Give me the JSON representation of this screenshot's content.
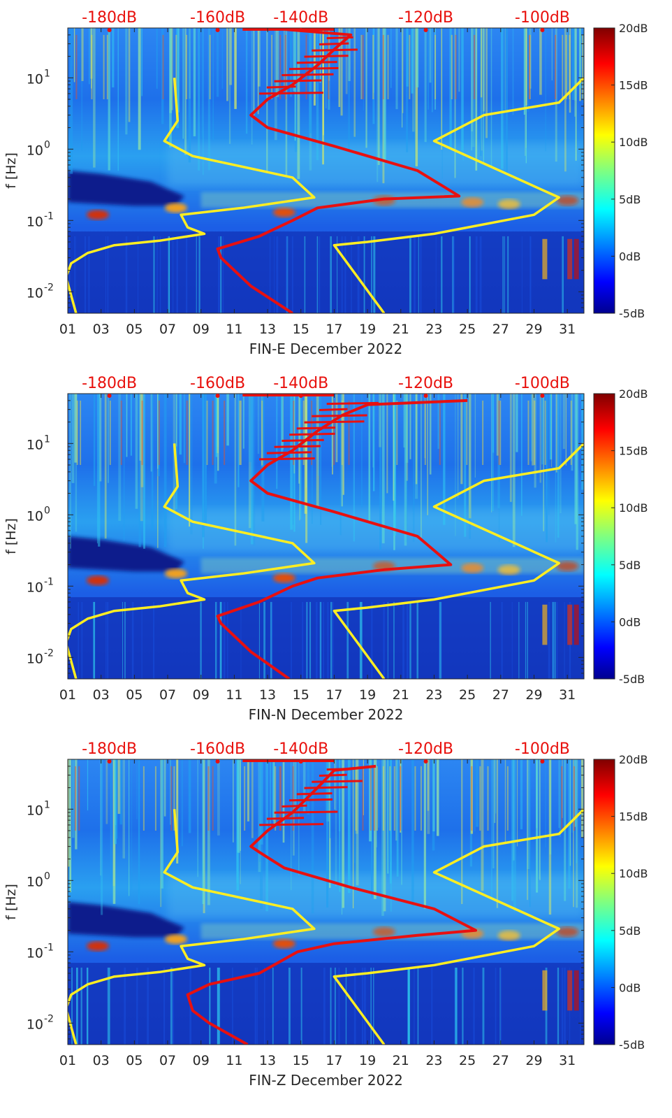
{
  "chart_data": [
    {
      "type": "heatmap",
      "xlabel": "FIN-E December 2022",
      "ylabel": "f [Hz]",
      "x_ticks": [
        "01",
        "03",
        "05",
        "07",
        "09",
        "11",
        "13",
        "15",
        "17",
        "19",
        "21",
        "23",
        "25",
        "27",
        "29",
        "31"
      ],
      "x_range": [
        1,
        32
      ],
      "y_scale": "log",
      "y_range": [
        0.005,
        50
      ],
      "y_ticks": [
        {
          "value": 0.01,
          "base": "10",
          "exp": "-2"
        },
        {
          "value": 0.1,
          "base": "10",
          "exp": "-1"
        },
        {
          "value": 1,
          "base": "10",
          "exp": "0"
        },
        {
          "value": 10,
          "base": "10",
          "exp": "1"
        }
      ],
      "top_axis_labels": [
        "-180dB",
        "-160dB",
        "-140dB",
        "-120dB",
        "-100dB"
      ],
      "top_axis_db": [
        -180,
        -160,
        -140,
        -120,
        -100
      ],
      "top_axis_day": [
        3.5,
        10,
        15,
        22.5,
        29.5
      ],
      "colorbar": {
        "labels": [
          "20dB",
          "15dB",
          "10dB",
          "5dB",
          "0dB",
          "-5dB"
        ],
        "range": [
          -5,
          20
        ],
        "colormap": "jet"
      },
      "series": [
        {
          "color": "#ffee22",
          "points": [
            [
              1.5,
              0.005
            ],
            [
              0.9,
              0.016
            ],
            [
              1.2,
              0.025
            ],
            [
              2.2,
              0.035
            ],
            [
              3.8,
              0.045
            ],
            [
              6.5,
              0.052
            ],
            [
              9.2,
              0.065
            ],
            [
              8.2,
              0.08
            ],
            [
              7.8,
              0.12
            ],
            [
              11.5,
              0.15
            ],
            [
              15.8,
              0.21
            ],
            [
              14.5,
              0.4
            ],
            [
              11,
              0.6
            ],
            [
              8.5,
              0.8
            ],
            [
              6.8,
              1.3
            ],
            [
              7.6,
              2.5
            ],
            [
              7.4,
              10
            ]
          ]
        },
        {
          "color": "#ffee22",
          "points": [
            [
              20,
              0.005
            ],
            [
              17,
              0.045
            ],
            [
              19,
              0.05
            ],
            [
              23,
              0.065
            ],
            [
              29,
              0.12
            ],
            [
              30.5,
              0.21
            ],
            [
              23,
              1.3
            ],
            [
              26,
              3
            ],
            [
              30.5,
              4.5
            ],
            [
              32,
              10
            ]
          ]
        },
        {
          "color": "#e81010",
          "points": [
            [
              14.5,
              0.005
            ],
            [
              12,
              0.012
            ],
            [
              10.2,
              0.03
            ],
            [
              10,
              0.04
            ],
            [
              12.5,
              0.06
            ],
            [
              14.5,
              0.1
            ],
            [
              16,
              0.15
            ],
            [
              20,
              0.2
            ],
            [
              24.5,
              0.22
            ],
            [
              22,
              0.5
            ],
            [
              17,
              1.1
            ],
            [
              13,
              2
            ],
            [
              12,
              3
            ],
            [
              13,
              5
            ],
            [
              14.5,
              8
            ],
            [
              16,
              15
            ],
            [
              17,
              25
            ],
            [
              18,
              40
            ],
            [
              13,
              50
            ]
          ]
        }
      ]
    },
    {
      "type": "heatmap",
      "xlabel": "FIN-N December 2022",
      "ylabel": "f [Hz]",
      "x_ticks": [
        "01",
        "03",
        "05",
        "07",
        "09",
        "11",
        "13",
        "15",
        "17",
        "19",
        "21",
        "23",
        "25",
        "27",
        "29",
        "31"
      ],
      "x_range": [
        1,
        32
      ],
      "y_scale": "log",
      "y_range": [
        0.005,
        50
      ],
      "y_ticks": [
        {
          "value": 0.01,
          "base": "10",
          "exp": "-2"
        },
        {
          "value": 0.1,
          "base": "10",
          "exp": "-1"
        },
        {
          "value": 1,
          "base": "10",
          "exp": "0"
        },
        {
          "value": 10,
          "base": "10",
          "exp": "1"
        }
      ],
      "top_axis_labels": [
        "-180dB",
        "-160dB",
        "-140dB",
        "-120dB",
        "-100dB"
      ],
      "top_axis_db": [
        -180,
        -160,
        -140,
        -120,
        -100
      ],
      "top_axis_day": [
        3.5,
        10,
        15,
        22.5,
        29.5
      ],
      "colorbar": {
        "labels": [
          "20dB",
          "15dB",
          "10dB",
          "5dB",
          "0dB",
          "-5dB"
        ],
        "range": [
          -5,
          20
        ],
        "colormap": "jet"
      },
      "series": [
        {
          "color": "#ffee22",
          "points": [
            [
              1.5,
              0.005
            ],
            [
              0.9,
              0.016
            ],
            [
              1.2,
              0.025
            ],
            [
              2.2,
              0.035
            ],
            [
              3.8,
              0.045
            ],
            [
              6.5,
              0.052
            ],
            [
              9.2,
              0.065
            ],
            [
              8.2,
              0.08
            ],
            [
              7.8,
              0.12
            ],
            [
              11.5,
              0.15
            ],
            [
              15.8,
              0.21
            ],
            [
              14.5,
              0.4
            ],
            [
              11,
              0.6
            ],
            [
              8.5,
              0.8
            ],
            [
              6.8,
              1.3
            ],
            [
              7.6,
              2.5
            ],
            [
              7.4,
              10
            ]
          ]
        },
        {
          "color": "#ffee22",
          "points": [
            [
              20,
              0.005
            ],
            [
              17,
              0.045
            ],
            [
              19,
              0.05
            ],
            [
              23,
              0.065
            ],
            [
              29,
              0.12
            ],
            [
              30.5,
              0.21
            ],
            [
              23,
              1.3
            ],
            [
              26,
              3
            ],
            [
              30.5,
              4.5
            ],
            [
              32,
              10
            ]
          ]
        },
        {
          "color": "#e81010",
          "points": [
            [
              14.3,
              0.005
            ],
            [
              12,
              0.012
            ],
            [
              10.2,
              0.03
            ],
            [
              10,
              0.038
            ],
            [
              12.5,
              0.06
            ],
            [
              14.5,
              0.1
            ],
            [
              16,
              0.13
            ],
            [
              20,
              0.17
            ],
            [
              24,
              0.2
            ],
            [
              22,
              0.5
            ],
            [
              17,
              1.1
            ],
            [
              13,
              2
            ],
            [
              12,
              3
            ],
            [
              13,
              5
            ],
            [
              14.5,
              8
            ],
            [
              16,
              15
            ],
            [
              17.5,
              25
            ],
            [
              19,
              35
            ],
            [
              25,
              40
            ]
          ]
        }
      ]
    },
    {
      "type": "heatmap",
      "xlabel": "FIN-Z December 2022",
      "ylabel": "f [Hz]",
      "x_ticks": [
        "01",
        "03",
        "05",
        "07",
        "09",
        "11",
        "13",
        "15",
        "17",
        "19",
        "21",
        "23",
        "25",
        "27",
        "29",
        "31"
      ],
      "x_range": [
        1,
        32
      ],
      "y_scale": "log",
      "y_range": [
        0.005,
        50
      ],
      "y_ticks": [
        {
          "value": 0.01,
          "base": "10",
          "exp": "-2"
        },
        {
          "value": 0.1,
          "base": "10",
          "exp": "-1"
        },
        {
          "value": 1,
          "base": "10",
          "exp": "0"
        },
        {
          "value": 10,
          "base": "10",
          "exp": "1"
        }
      ],
      "top_axis_labels": [
        "-180dB",
        "-160dB",
        "-140dB",
        "-120dB",
        "-100dB"
      ],
      "top_axis_db": [
        -180,
        -160,
        -140,
        -120,
        -100
      ],
      "top_axis_day": [
        3.5,
        10,
        15,
        22.5,
        29.5
      ],
      "colorbar": {
        "labels": [
          "20dB",
          "15dB",
          "10dB",
          "5dB",
          "0dB",
          "-5dB"
        ],
        "range": [
          -5,
          20
        ],
        "colormap": "jet"
      },
      "series": [
        {
          "color": "#ffee22",
          "points": [
            [
              1.5,
              0.005
            ],
            [
              0.9,
              0.016
            ],
            [
              1.2,
              0.025
            ],
            [
              2.2,
              0.035
            ],
            [
              3.8,
              0.045
            ],
            [
              6.5,
              0.052
            ],
            [
              9.2,
              0.065
            ],
            [
              8.2,
              0.08
            ],
            [
              7.8,
              0.12
            ],
            [
              11.5,
              0.15
            ],
            [
              15.8,
              0.21
            ],
            [
              14.5,
              0.4
            ],
            [
              11,
              0.6
            ],
            [
              8.5,
              0.8
            ],
            [
              6.8,
              1.3
            ],
            [
              7.6,
              2.5
            ],
            [
              7.4,
              10
            ]
          ]
        },
        {
          "color": "#ffee22",
          "points": [
            [
              20,
              0.005
            ],
            [
              17,
              0.045
            ],
            [
              19,
              0.05
            ],
            [
              23,
              0.065
            ],
            [
              29,
              0.12
            ],
            [
              30.5,
              0.21
            ],
            [
              23,
              1.3
            ],
            [
              26,
              3
            ],
            [
              30.5,
              4.5
            ],
            [
              32,
              10
            ]
          ]
        },
        {
          "color": "#e81010",
          "points": [
            [
              11.8,
              0.005
            ],
            [
              9.5,
              0.01
            ],
            [
              8.5,
              0.015
            ],
            [
              8.2,
              0.025
            ],
            [
              9.5,
              0.035
            ],
            [
              12.5,
              0.05
            ],
            [
              14.8,
              0.1
            ],
            [
              17,
              0.13
            ],
            [
              22,
              0.17
            ],
            [
              25.5,
              0.2
            ],
            [
              23,
              0.4
            ],
            [
              18,
              0.8
            ],
            [
              14,
              1.5
            ],
            [
              12.5,
              2.5
            ],
            [
              12,
              3
            ],
            [
              13,
              5
            ],
            [
              14.5,
              9
            ],
            [
              16,
              20
            ],
            [
              17,
              35
            ],
            [
              19.5,
              40
            ]
          ]
        }
      ]
    }
  ]
}
